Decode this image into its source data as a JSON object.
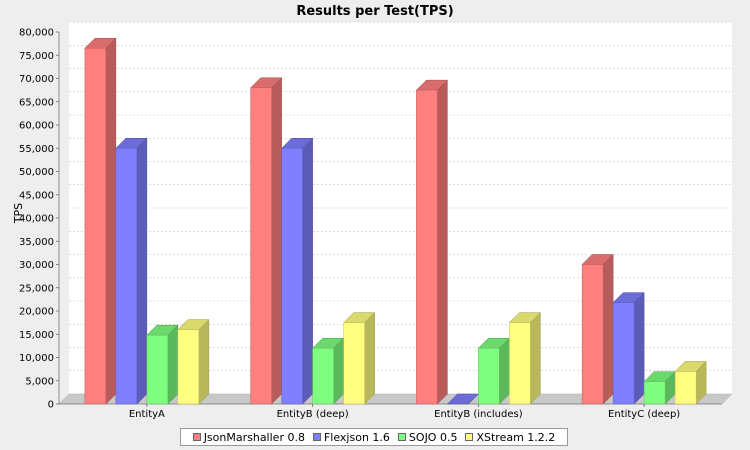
{
  "chart_data": {
    "type": "bar",
    "title": "Results per Test(TPS)",
    "xlabel": "",
    "ylabel": "TPS",
    "ylim": [
      0,
      80000
    ],
    "ytick_step": 5000,
    "grid": true,
    "legend_placement": "bottom",
    "categories": [
      "EntityA",
      "EntityB (deep)",
      "EntityB (includes)",
      "EntityC (deep)"
    ],
    "series": [
      {
        "name": "JsonMarshaller 0.8",
        "color": "#ff7f7f",
        "values": [
          76500,
          68000,
          67500,
          30000
        ]
      },
      {
        "name": "Flexjson 1.6",
        "color": "#7f7fff",
        "values": [
          55000,
          55000,
          0,
          21800
        ]
      },
      {
        "name": "SOJO 0.5",
        "color": "#7fff7f",
        "values": [
          14800,
          12000,
          12000,
          4800
        ]
      },
      {
        "name": "XStream 1.2.2",
        "color": "#ffff7f",
        "values": [
          16000,
          17500,
          17500,
          7000
        ]
      }
    ]
  }
}
